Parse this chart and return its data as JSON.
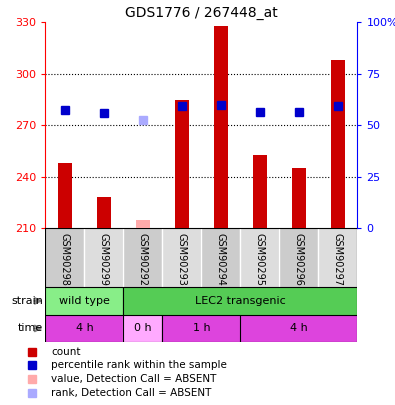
{
  "title": "GDS1776 / 267448_at",
  "samples": [
    "GSM90298",
    "GSM90299",
    "GSM90292",
    "GSM90293",
    "GSM90294",
    "GSM90295",
    "GSM90296",
    "GSM90297"
  ],
  "counts": [
    248,
    228,
    null,
    285,
    328,
    253,
    245,
    308
  ],
  "absent_counts": [
    null,
    null,
    215,
    null,
    null,
    null,
    null,
    null
  ],
  "ranks": [
    279,
    277,
    null,
    281,
    282,
    278,
    278,
    281
  ],
  "absent_ranks": [
    null,
    null,
    273,
    null,
    null,
    null,
    null,
    null
  ],
  "ylim_left": [
    210,
    330
  ],
  "ylim_right": [
    0,
    100
  ],
  "yticks_left": [
    210,
    240,
    270,
    300,
    330
  ],
  "yticks_right": [
    0,
    25,
    50,
    75,
    100
  ],
  "ytick_labels_right": [
    "0",
    "25",
    "50",
    "75",
    "100%"
  ],
  "bar_color": "#cc0000",
  "absent_bar_color": "#ffaaaa",
  "rank_color": "#0000cc",
  "absent_rank_color": "#aaaaff",
  "strain_groups": [
    {
      "label": "wild type",
      "start": 0,
      "end": 2,
      "color": "#88ee88"
    },
    {
      "label": "LEC2 transgenic",
      "start": 2,
      "end": 8,
      "color": "#55cc55"
    }
  ],
  "time_groups": [
    {
      "label": "4 h",
      "start": 0,
      "end": 2,
      "color": "#dd44dd"
    },
    {
      "label": "0 h",
      "start": 2,
      "end": 3,
      "color": "#ffaaff"
    },
    {
      "label": "1 h",
      "start": 3,
      "end": 5,
      "color": "#dd44dd"
    },
    {
      "label": "4 h",
      "start": 5,
      "end": 8,
      "color": "#dd44dd"
    }
  ],
  "legend_items": [
    {
      "label": "count",
      "color": "#cc0000"
    },
    {
      "label": "percentile rank within the sample",
      "color": "#0000cc"
    },
    {
      "label": "value, Detection Call = ABSENT",
      "color": "#ffaaaa"
    },
    {
      "label": "rank, Detection Call = ABSENT",
      "color": "#aaaaff"
    }
  ],
  "bar_width": 0.35,
  "rank_marker_size": 6,
  "xlabel_bg_colors": [
    "#cccccc",
    "#dddddd"
  ]
}
